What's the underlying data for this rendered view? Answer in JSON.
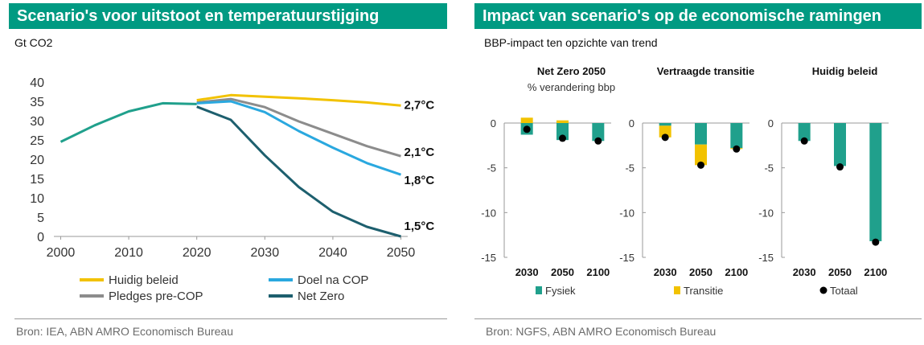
{
  "left": {
    "title": "Scenario's voor uitstoot en temperatuurstijging",
    "ylabel": "Gt CO2",
    "source": "Bron: IEA, ABN AMRO Economisch Bureau"
  },
  "right": {
    "title": "Impact van scenario's op de economische ramingen",
    "subtitle": "BBP-impact ten opzichte van trend",
    "source": "Bron: NGFS, ABN AMRO Economisch Bureau"
  },
  "chart_data": [
    {
      "type": "line",
      "ylabel": "Gt CO2",
      "xlim": [
        1999,
        2051
      ],
      "ylim": [
        0,
        40
      ],
      "xticks": [
        2000,
        2010,
        2020,
        2030,
        2040,
        2050
      ],
      "yticks": [
        0,
        5,
        10,
        15,
        20,
        25,
        30,
        35,
        40
      ],
      "grid": false,
      "legend_position": "bottom",
      "series": [
        {
          "name": "Huidig beleid",
          "color": "#f2c200",
          "end_label": "2,7°C",
          "x": [
            2020,
            2025,
            2030,
            2035,
            2040,
            2045,
            2050
          ],
          "y": [
            35.3,
            36.6,
            36.2,
            35.8,
            35.3,
            34.7,
            33.9
          ]
        },
        {
          "name": "Doel na COP",
          "color": "#2aa8df",
          "end_label": "1,8°C",
          "x": [
            2020,
            2025,
            2030,
            2035,
            2040,
            2045,
            2050
          ],
          "y": [
            34.5,
            35.0,
            32.2,
            27.3,
            23.0,
            19.0,
            16.0
          ]
        },
        {
          "name": "Pledges pre-COP",
          "color": "#8c8c8c",
          "end_label": "2,1°C",
          "x": [
            2020,
            2025,
            2030,
            2035,
            2040,
            2045,
            2050
          ],
          "y": [
            34.7,
            35.6,
            33.5,
            29.8,
            26.6,
            23.4,
            20.8
          ]
        },
        {
          "name": "Net Zero",
          "color": "#1d5f6e",
          "end_label": "1,5°C",
          "x": [
            2020,
            2025,
            2030,
            2035,
            2040,
            2045,
            2050
          ],
          "y": [
            33.6,
            30.2,
            21.0,
            12.8,
            6.4,
            2.5,
            0.0
          ]
        },
        {
          "name": "",
          "color": "#20a08c",
          "x": [
            2000,
            2005,
            2010,
            2015,
            2020
          ],
          "y": [
            24.5,
            28.8,
            32.4,
            34.5,
            34.3
          ]
        }
      ],
      "legend": [
        {
          "label": "Huidig beleid",
          "color": "#f2c200"
        },
        {
          "label": "Doel na COP",
          "color": "#2aa8df"
        },
        {
          "label": "Pledges pre-COP",
          "color": "#8c8c8c"
        },
        {
          "label": "Net Zero",
          "color": "#1d5f6e"
        }
      ]
    },
    {
      "type": "bar",
      "stacked": true,
      "ylim": [
        -15,
        0
      ],
      "yticks": [
        0,
        -5,
        -10,
        -15
      ],
      "legend_position": "bottom",
      "legend": [
        {
          "label": "Fysiek",
          "color": "#20a08c",
          "marker": "square"
        },
        {
          "label": "Transitie",
          "color": "#f2c200",
          "marker": "square"
        },
        {
          "label": "Totaal",
          "color": "#000000",
          "marker": "circle"
        }
      ],
      "panels": [
        {
          "title": "Net Zero 2050",
          "subtitle": "% verandering bbp",
          "categories": [
            "2030",
            "2050",
            "2100"
          ],
          "fysiek": [
            -1.3,
            -1.9,
            -2.0
          ],
          "transitie": [
            0.6,
            0.3,
            0.0
          ],
          "totaal": [
            -0.7,
            -1.7,
            -2.0
          ]
        },
        {
          "title": "Vertraagde transitie",
          "subtitle": "",
          "categories": [
            "2030",
            "2050",
            "2100"
          ],
          "fysiek": [
            -0.3,
            -2.4,
            -2.8
          ],
          "transitie": [
            -1.3,
            -2.3,
            -0.1
          ],
          "totaal": [
            -1.6,
            -4.7,
            -2.9
          ]
        },
        {
          "title": "Huidig beleid",
          "subtitle": "",
          "categories": [
            "2030",
            "2050",
            "2100"
          ],
          "fysiek": [
            -2.0,
            -4.8,
            -13.2
          ],
          "transitie": [
            0.0,
            0.0,
            0.0
          ],
          "totaal": [
            -2.0,
            -4.9,
            -13.3
          ]
        }
      ]
    }
  ]
}
